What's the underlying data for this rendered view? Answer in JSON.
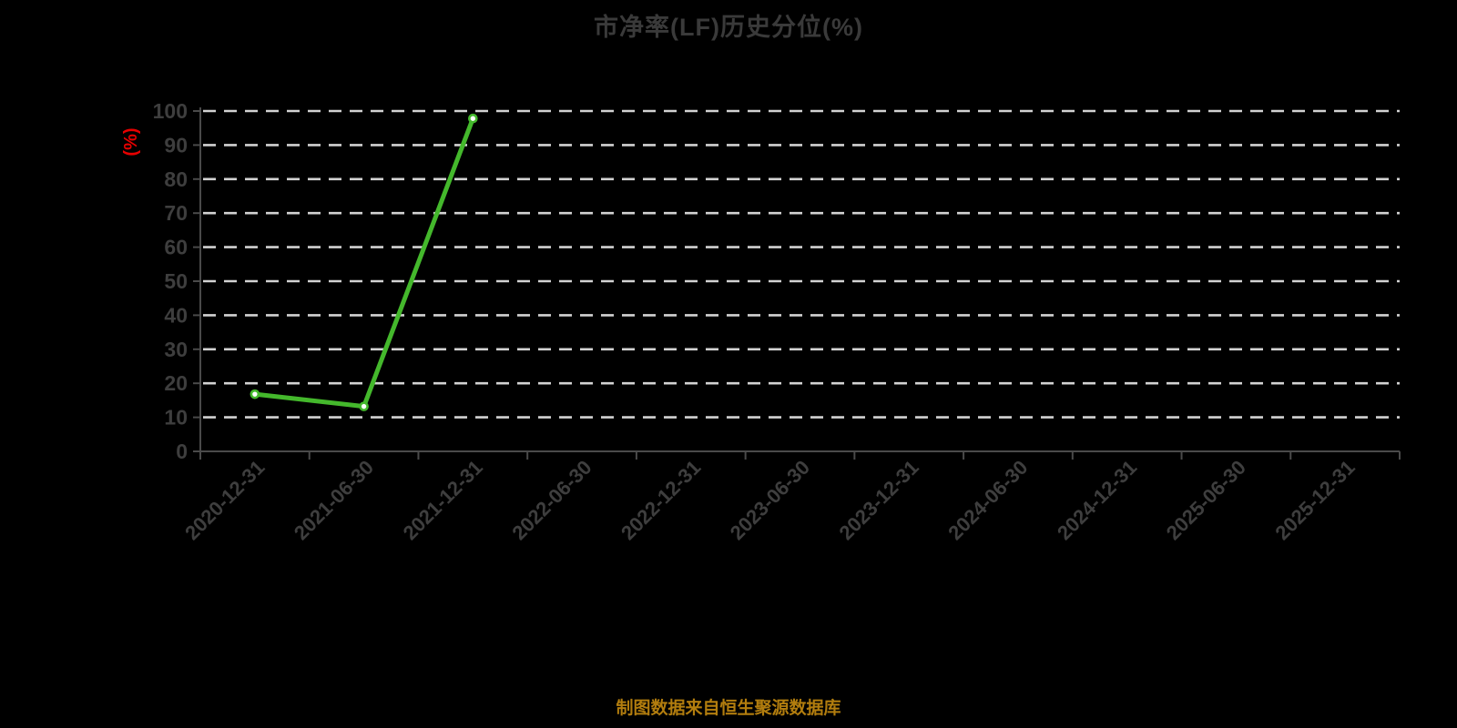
{
  "source_note": "制图数据来自恒生聚源数据库",
  "chart_data": {
    "type": "line",
    "title": "市净率(LF)历史分位(%)",
    "xlabel": "",
    "ylabel": "(%)",
    "categories": [
      "2020-12-31",
      "2021-06-30",
      "2021-12-31",
      "2022-06-30",
      "2022-12-31",
      "2023-06-30",
      "2023-12-31",
      "2024-06-30",
      "2024-12-31",
      "2025-06-30",
      "2025-12-31"
    ],
    "values": [
      16.8,
      13.2,
      97.8,
      null,
      null,
      null,
      null,
      null,
      null,
      null,
      null
    ],
    "ylim": [
      0,
      100
    ],
    "ytick_interval": 10,
    "ytick_labels": [
      "0",
      "10",
      "20",
      "30",
      "40",
      "50",
      "60",
      "70",
      "80",
      "90",
      "100"
    ],
    "grid": "dashed-horizontal",
    "legend_position": "none",
    "x_label_rotation_deg": 45,
    "colors": {
      "background": "#000000",
      "line": "#44b82c",
      "marker_fill": "#ffffff",
      "grid": "#d2d2d2",
      "axis": "#4a4a4a",
      "tick_label": "#3e3e3e",
      "title": "#3a3a3a",
      "unit_label": "#e60000",
      "source_note": "#b27d0e"
    }
  }
}
